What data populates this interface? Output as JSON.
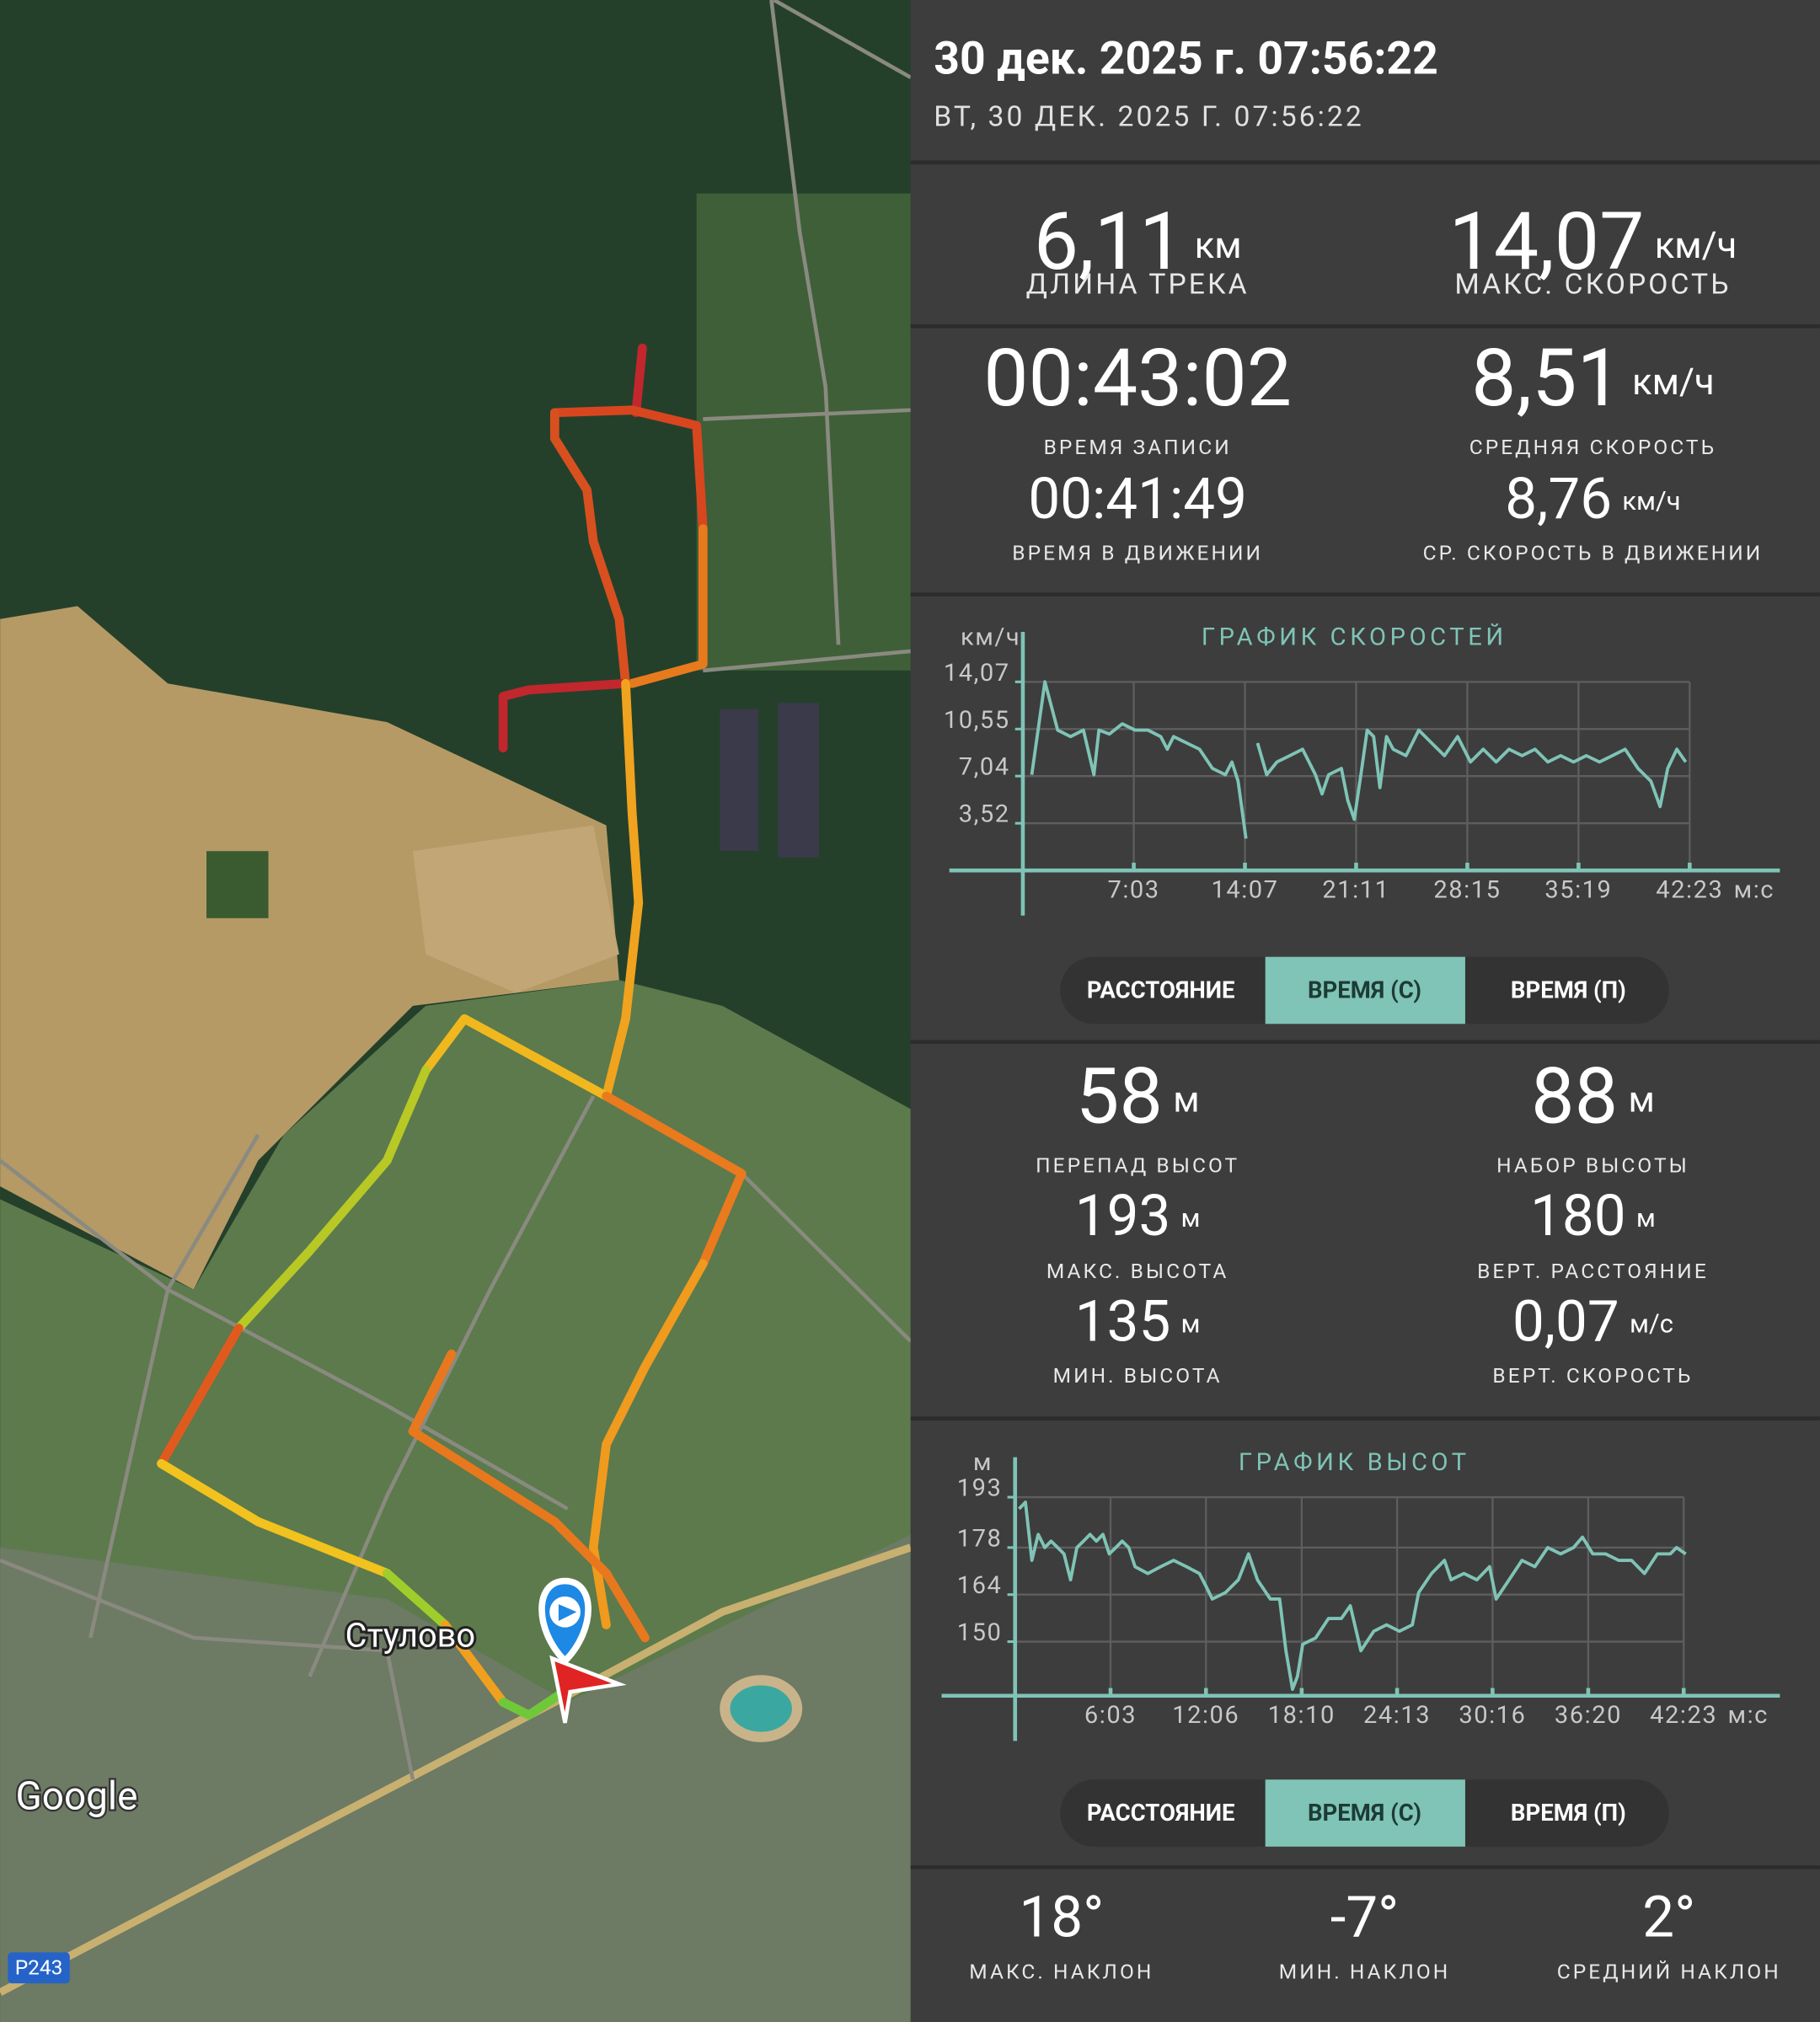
{
  "map": {
    "place": "Стулово",
    "provider": "Google",
    "road": "Р243"
  },
  "header": {
    "title": "30 дек. 2025 г. 07:56:22",
    "subtitle": "ВТ, 30 ДЕК. 2025 Г. 07:56:22"
  },
  "speed_stats": [
    {
      "value": "6,11",
      "unit": "км",
      "label": "ДЛИНА ТРЕКА"
    },
    {
      "value": "14,07",
      "unit": "км/ч",
      "label": "МАКС. СКОРОСТЬ"
    },
    {
      "value": "00:43:02",
      "label": "ВРЕМЯ ЗАПИСИ"
    },
    {
      "value": "8,51",
      "unit": "км/ч",
      "label": "СРЕДНЯЯ СКОРОСТЬ"
    },
    {
      "value": "00:41:49",
      "label": "ВРЕМЯ В ДВИЖЕНИИ"
    },
    {
      "value": "8,76",
      "unit": "км/ч",
      "label": "СР. СКОРОСТЬ В ДВИЖЕНИИ"
    }
  ],
  "speed_chart": {
    "type": "line",
    "title": "ГРАФИК СКОРОСТЕЙ",
    "y_unit": "км/ч",
    "x_unit": "м:с",
    "grid": true,
    "xlim": [
      0,
      2887
    ],
    "ylim": [
      0,
      17.8
    ],
    "xticks": [
      {
        "value": 423,
        "label": "7:03"
      },
      {
        "value": 847,
        "label": "14:07"
      },
      {
        "value": 1271,
        "label": "21:11"
      },
      {
        "value": 1695,
        "label": "28:15"
      },
      {
        "value": 2119,
        "label": "35:19"
      },
      {
        "value": 2543,
        "label": "42:23"
      }
    ],
    "yticks": [
      {
        "value": 3.52,
        "label": "3,52"
      },
      {
        "value": 7.04,
        "label": "7,04"
      },
      {
        "value": 10.55,
        "label": "10,55"
      },
      {
        "value": 14.07,
        "label": "14,07"
      }
    ],
    "x": [
      34,
      84,
      133,
      182,
      231,
      271,
      290,
      330,
      379,
      428,
      477,
      526,
      551,
      575,
      625,
      674,
      723,
      772,
      797,
      821,
      851,
      871,
      895,
      930,
      969,
      1018,
      1067,
      1116,
      1141,
      1166,
      1215,
      1239,
      1264,
      1289,
      1313,
      1338,
      1362,
      1387,
      1412,
      1461,
      1510,
      1559,
      1608,
      1658,
      1707,
      1756,
      1805,
      1854,
      1904,
      1953,
      2002,
      2051,
      2100,
      2149,
      2199,
      2248,
      2297,
      2346,
      2395,
      2430,
      2459,
      2494,
      2528
    ],
    "series": [
      {
        "color": "#7fc4b6",
        "values": [
          7.14,
          14.08,
          10.47,
          9.99,
          10.47,
          7.14,
          10.47,
          10.18,
          10.94,
          10.47,
          10.47,
          9.99,
          9.04,
          9.99,
          9.51,
          9.04,
          7.61,
          7.14,
          8.09,
          6.66,
          2.38,
          null,
          9.51,
          7.14,
          8.09,
          8.56,
          9.04,
          7.14,
          5.71,
          7.14,
          7.61,
          5.23,
          3.81,
          7.14,
          10.47,
          9.99,
          6.18,
          9.99,
          9.04,
          8.56,
          10.47,
          9.51,
          8.56,
          9.99,
          8.09,
          9.04,
          8.09,
          9.04,
          8.56,
          9.04,
          8.09,
          8.56,
          8.09,
          8.56,
          8.09,
          8.56,
          9.04,
          7.61,
          6.66,
          4.76,
          7.61,
          9.04,
          8.09
        ]
      }
    ],
    "modes": {
      "options": [
        "РАССТОЯНИЕ",
        "ВРЕМЯ (С)",
        "ВРЕМЯ (П)"
      ],
      "selected": 1
    }
  },
  "altitude_stats": [
    {
      "value": "58",
      "unit": "м",
      "label": "ПЕРЕПАД ВЫСОТ"
    },
    {
      "value": "88",
      "unit": "м",
      "label": "НАБОР ВЫСОТЫ"
    },
    {
      "value": "193",
      "unit": "м",
      "label": "МАКС. ВЫСОТА"
    },
    {
      "value": "180",
      "unit": "м",
      "label": "ВЕРТ. РАССТОЯНИЕ"
    },
    {
      "value": "135",
      "unit": "м",
      "label": "МИН. ВЫСОТА"
    },
    {
      "value": "0,07",
      "unit": "м/с",
      "label": "ВЕРТ. СКОРОСТЬ"
    }
  ],
  "altitude_chart": {
    "type": "line",
    "title": "ГРАФИК ВЫСОТ",
    "y_unit": "м",
    "x_unit": "м:с",
    "grid": true,
    "xlim": [
      0,
      2909
    ],
    "ylim": [
      133.9,
      204.9
    ],
    "xticks": [
      {
        "value": 363,
        "label": "6:03"
      },
      {
        "value": 726,
        "label": "12:06"
      },
      {
        "value": 1090,
        "label": "18:10"
      },
      {
        "value": 1453,
        "label": "24:13"
      },
      {
        "value": 1816,
        "label": "30:16"
      },
      {
        "value": 2180,
        "label": "36:20"
      },
      {
        "value": 2543,
        "label": "42:23"
      }
    ],
    "yticks": [
      150,
      164,
      178,
      193
    ],
    "x": [
      15,
      39,
      64,
      88,
      113,
      137,
      162,
      186,
      211,
      235,
      260,
      285,
      309,
      334,
      358,
      383,
      407,
      432,
      456,
      505,
      554,
      603,
      652,
      701,
      726,
      750,
      800,
      849,
      888,
      922,
      971,
      1006,
      1030,
      1055,
      1074,
      1094,
      1143,
      1192,
      1241,
      1275,
      1315,
      1364,
      1413,
      1462,
      1511,
      1535,
      1584,
      1633,
      1658,
      1707,
      1756,
      1805,
      1830,
      1879,
      1928,
      1977,
      2026,
      2075,
      2124,
      2158,
      2197,
      2246,
      2296,
      2345,
      2394,
      2443,
      2492,
      2516,
      2551
    ],
    "series": [
      {
        "color": "#7fc4b6",
        "values": [
          189.5,
          191.5,
          174.2,
          181.9,
          178.0,
          179.9,
          178.0,
          176.1,
          168.4,
          178.0,
          179.9,
          181.9,
          179.9,
          181.9,
          176.1,
          178.0,
          179.9,
          178.0,
          172.3,
          170.3,
          172.3,
          174.2,
          172.3,
          170.3,
          166.5,
          162.7,
          164.6,
          168.4,
          176.1,
          168.4,
          162.7,
          162.7,
          147.3,
          135.8,
          139.6,
          149.2,
          151.1,
          156.9,
          156.9,
          160.7,
          147.3,
          153.1,
          155.0,
          153.1,
          155.0,
          164.6,
          170.3,
          174.2,
          168.4,
          170.3,
          168.4,
          172.3,
          162.7,
          168.4,
          174.2,
          172.3,
          178.0,
          176.1,
          178.0,
          181.1,
          176.1,
          176.1,
          174.2,
          174.2,
          170.3,
          176.1,
          176.1,
          178.0,
          176.1
        ]
      }
    ],
    "modes": {
      "options": [
        "РАССТОЯНИЕ",
        "ВРЕМЯ (С)",
        "ВРЕМЯ (П)"
      ],
      "selected": 1
    }
  },
  "slope_stats": [
    {
      "value": "18°",
      "label": "МАКС. НАКЛОН"
    },
    {
      "value": "-7°",
      "label": "МИН. НАКЛОН"
    },
    {
      "value": "2°",
      "label": "СРЕДНИЙ НАКЛОН"
    }
  ]
}
